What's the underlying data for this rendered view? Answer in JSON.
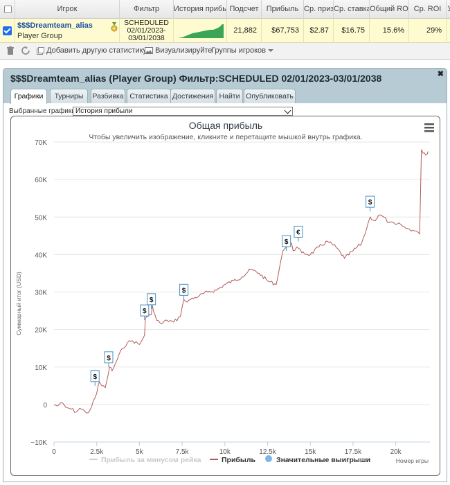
{
  "grid": {
    "headers": [
      "Игрок",
      "Фильтр",
      "История прибыли",
      "Подсчет",
      "Прибыль",
      "Ср. приз",
      "Ср. ставка",
      "Общий ROI",
      "Ср. ROI",
      "У"
    ],
    "row": {
      "player_name": "$$$Dreamteam_alias",
      "player_type": "Player Group",
      "filter_lines": [
        "SCHEDULED",
        "02/01/2023-",
        "03/01/2038"
      ],
      "count": "21,882",
      "profit": "$67,753",
      "avg_prize": "$2.87",
      "avg_stake": "$16.75",
      "total_roi": "15.6%",
      "avg_roi": "29%"
    }
  },
  "toolbar": {
    "add_stat": "Добавить другую статистику",
    "visualize": "Визуализируйте",
    "player_groups": "Группы игроков"
  },
  "panel": {
    "title": "$$$Dreamteam_alias (Player Group) Фильтр:SCHEDULED 02/01/2023-03/01/2038",
    "tabs": [
      "Графики",
      "Турниры",
      "Разбивка",
      "Статистика",
      "Достижения",
      "Найти",
      "Опубликовать"
    ],
    "active_tab": 0,
    "select_label": "Выбранные графики:",
    "select_value": "История прибыли"
  },
  "colors": {
    "line": "#b05a5a",
    "marker_border": "#4a90c4",
    "accent_blue": "#1d4fa0"
  },
  "chart_data": {
    "type": "line",
    "title": "Общая прибыль",
    "subtitle": "Чтобы увеличить изображение, кликните и перетащите мышкой внутрь графика.",
    "ylabel": "Суммарный итог (USD)",
    "xlabel": "Номер игры",
    "xlim": [
      0,
      22000
    ],
    "ylim": [
      -10000,
      70000
    ],
    "x_ticks": [
      0,
      2500,
      5000,
      7500,
      10000,
      12500,
      15000,
      17500,
      20000
    ],
    "x_tick_labels": [
      "0",
      "2.5k",
      "5k",
      "7.5k",
      "10k",
      "12.5k",
      "15k",
      "17.5k",
      "20k"
    ],
    "y_ticks": [
      -10000,
      0,
      10000,
      20000,
      30000,
      40000,
      50000,
      60000,
      70000
    ],
    "y_tick_labels": [
      "−10K",
      "0",
      "10K",
      "20K",
      "30K",
      "40K",
      "50K",
      "60K",
      "70K"
    ],
    "grid": "horizontal",
    "legend": [
      "Прибыль за минусом рейка",
      "Прибыль",
      "Значительные выигрыши"
    ],
    "legend_position": "bottom",
    "series": [
      {
        "name": "Прибыль",
        "x": [
          0,
          200,
          400,
          700,
          1000,
          1300,
          1500,
          1800,
          2000,
          2200,
          2300,
          2400,
          2500,
          2650,
          2800,
          3000,
          3100,
          3250,
          3400,
          3700,
          4000,
          4300,
          4600,
          5000,
          5300,
          5350,
          5500,
          5700,
          5750,
          6000,
          6300,
          6600,
          7000,
          7400,
          7500,
          7600,
          7700,
          8000,
          8500,
          9000,
          9500,
          10000,
          10500,
          11000,
          11500,
          12000,
          12500,
          13000,
          13300,
          13400,
          13600,
          13900,
          14000,
          14200,
          14500,
          15000,
          15500,
          16000,
          16500,
          17000,
          17500,
          18000,
          18300,
          18500,
          18800,
          19000,
          19300,
          19600,
          20000,
          20300,
          20600,
          21000,
          21300,
          21400,
          21500,
          21600,
          21750,
          21900
        ],
        "y": [
          0,
          -400,
          500,
          -800,
          -1200,
          -2000,
          -1000,
          -1800,
          -2200,
          -600,
          1000,
          1800,
          3000,
          6000,
          5000,
          4500,
          6500,
          10000,
          9000,
          12000,
          15000,
          16500,
          17000,
          16000,
          18500,
          23000,
          23500,
          24000,
          26500,
          22500,
          21500,
          22500,
          22000,
          23500,
          26000,
          28000,
          27500,
          28000,
          29000,
          30000,
          30500,
          32000,
          33000,
          34000,
          36000,
          35000,
          33000,
          32000,
          39000,
          41000,
          42000,
          43000,
          41000,
          42000,
          40500,
          40000,
          42000,
          43500,
          42000,
          39000,
          41000,
          43000,
          47000,
          50000,
          49000,
          50500,
          50000,
          48500,
          48000,
          48000,
          47000,
          46500,
          46000,
          45500,
          68000,
          67000,
          66500,
          67500
        ]
      }
    ],
    "big_wins": [
      {
        "x": 2400,
        "y": 5000,
        "label": "$"
      },
      {
        "x": 3200,
        "y": 10000,
        "label": "$"
      },
      {
        "x": 5300,
        "y": 22500,
        "label": "$"
      },
      {
        "x": 5700,
        "y": 25500,
        "label": "$"
      },
      {
        "x": 7600,
        "y": 28000,
        "label": "$"
      },
      {
        "x": 13600,
        "y": 41000,
        "label": "$"
      },
      {
        "x": 14300,
        "y": 43500,
        "label": "€"
      },
      {
        "x": 18500,
        "y": 51500,
        "label": "$"
      }
    ]
  }
}
